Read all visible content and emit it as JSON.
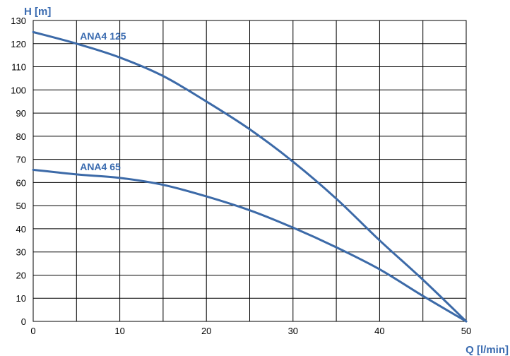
{
  "chart_data": {
    "type": "line",
    "title": "",
    "xlabel": "Q [l/min]",
    "ylabel": "H [m]",
    "xlim": [
      0,
      50
    ],
    "ylim": [
      0,
      130
    ],
    "x_ticks": [
      0,
      10,
      20,
      30,
      40,
      50
    ],
    "y_ticks": [
      0,
      10,
      20,
      30,
      40,
      50,
      60,
      70,
      80,
      90,
      100,
      110,
      120,
      130
    ],
    "x_tick_labels": [
      "0",
      "10",
      "20",
      "30",
      "40",
      "50"
    ],
    "y_tick_labels": [
      "0",
      "10",
      "20",
      "30",
      "40",
      "50",
      "60",
      "70",
      "80",
      "90",
      "100",
      "110",
      "120",
      "130"
    ],
    "grid": true,
    "line_color": "#3c6aa8",
    "label_color": "#3a6bb0",
    "series": [
      {
        "name": "ANA4 125",
        "points": [
          [
            0,
            125
          ],
          [
            5,
            120
          ],
          [
            10,
            114
          ],
          [
            15,
            106
          ],
          [
            20,
            95
          ],
          [
            25,
            83
          ],
          [
            30,
            69
          ],
          [
            35,
            53
          ],
          [
            40,
            35
          ],
          [
            45,
            18
          ],
          [
            50,
            0
          ]
        ]
      },
      {
        "name": "ANA4 65",
        "points": [
          [
            0,
            65.5
          ],
          [
            5,
            63.5
          ],
          [
            10,
            62
          ],
          [
            15,
            59
          ],
          [
            20,
            54
          ],
          [
            25,
            48
          ],
          [
            30,
            40.5
          ],
          [
            35,
            32
          ],
          [
            40,
            22.5
          ],
          [
            45,
            11
          ],
          [
            50,
            0
          ]
        ]
      }
    ]
  }
}
